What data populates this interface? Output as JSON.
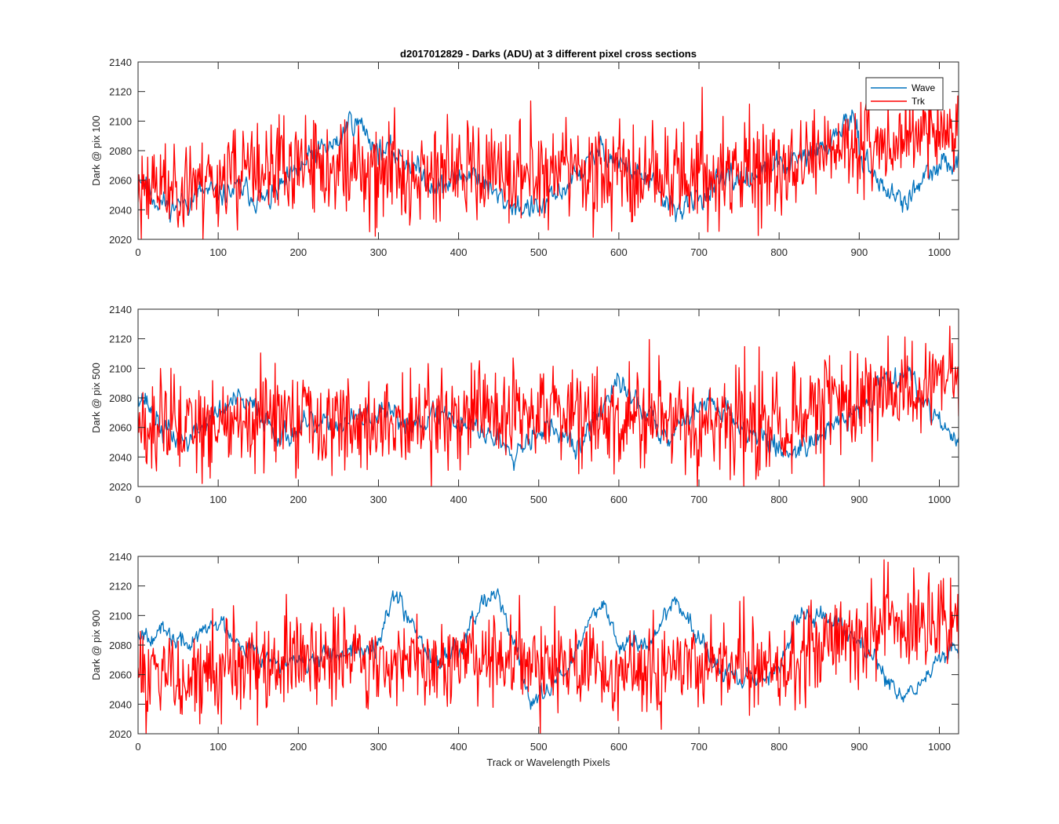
{
  "figure": {
    "title": "d2017012829 - Darks (ADU) at 3 different pixel cross sections",
    "xlabel": "Track or Wavelength Pixels"
  },
  "legend": {
    "placement": "top-right",
    "entries": [
      {
        "name": "Wave",
        "color": "#0072BD"
      },
      {
        "name": "Trk",
        "color": "#FF0000"
      }
    ]
  },
  "chart_data": [
    {
      "type": "line",
      "ylabel": "Dark @ pix 100",
      "xlim": [
        0,
        1024
      ],
      "ylim": [
        2020,
        2140
      ],
      "xticks": [
        0,
        100,
        200,
        300,
        400,
        500,
        600,
        700,
        800,
        900,
        1000
      ],
      "yticks": [
        2020,
        2040,
        2060,
        2080,
        2100,
        2120,
        2140
      ],
      "grid": false,
      "legend": true,
      "series": [
        {
          "name": "Wave",
          "color": "#0072BD",
          "noise": 5,
          "seed": 11,
          "x": [
            0,
            20,
            40,
            60,
            80,
            100,
            130,
            160,
            190,
            220,
            250,
            265,
            280,
            300,
            320,
            340,
            360,
            380,
            400,
            420,
            440,
            460,
            480,
            500,
            520,
            540,
            560,
            580,
            600,
            620,
            640,
            660,
            680,
            700,
            720,
            740,
            760,
            780,
            800,
            820,
            840,
            860,
            880,
            890,
            900,
            920,
            940,
            960,
            980,
            1000,
            1024
          ],
          "y": [
            2066,
            2048,
            2042,
            2046,
            2052,
            2050,
            2054,
            2045,
            2060,
            2078,
            2085,
            2102,
            2096,
            2080,
            2078,
            2072,
            2060,
            2055,
            2062,
            2066,
            2052,
            2045,
            2042,
            2040,
            2048,
            2060,
            2070,
            2082,
            2072,
            2066,
            2058,
            2044,
            2040,
            2048,
            2056,
            2060,
            2062,
            2066,
            2070,
            2072,
            2078,
            2082,
            2098,
            2103,
            2082,
            2062,
            2050,
            2046,
            2060,
            2068,
            2075
          ]
        },
        {
          "name": "Trk",
          "color": "#FF0000",
          "noise": 15,
          "seed": 23,
          "x": [
            0,
            100,
            200,
            300,
            400,
            500,
            600,
            700,
            800,
            850,
            900,
            950,
            1000,
            1024
          ],
          "y": [
            2055,
            2062,
            2068,
            2068,
            2065,
            2066,
            2066,
            2063,
            2068,
            2075,
            2085,
            2090,
            2095,
            2098
          ]
        }
      ]
    },
    {
      "type": "line",
      "ylabel": "Dark @ pix 500",
      "xlim": [
        0,
        1024
      ],
      "ylim": [
        2020,
        2140
      ],
      "xticks": [
        0,
        100,
        200,
        300,
        400,
        500,
        600,
        700,
        800,
        900,
        1000
      ],
      "yticks": [
        2020,
        2040,
        2060,
        2080,
        2100,
        2120,
        2140
      ],
      "grid": false,
      "legend": false,
      "series": [
        {
          "name": "Wave",
          "color": "#0072BD",
          "noise": 5,
          "seed": 37,
          "x": [
            0,
            10,
            30,
            60,
            90,
            120,
            150,
            180,
            210,
            250,
            300,
            340,
            380,
            420,
            450,
            470,
            500,
            520,
            550,
            580,
            600,
            630,
            660,
            690,
            720,
            760,
            790,
            810,
            840,
            870,
            900,
            930,
            960,
            980,
            1000,
            1024
          ],
          "y": [
            2085,
            2078,
            2058,
            2050,
            2066,
            2078,
            2072,
            2054,
            2060,
            2062,
            2068,
            2064,
            2070,
            2060,
            2052,
            2045,
            2060,
            2058,
            2045,
            2075,
            2090,
            2072,
            2055,
            2070,
            2078,
            2058,
            2050,
            2042,
            2052,
            2060,
            2072,
            2092,
            2100,
            2078,
            2068,
            2045
          ]
        },
        {
          "name": "Trk",
          "color": "#FF0000",
          "noise": 15,
          "seed": 51,
          "x": [
            0,
            100,
            200,
            300,
            400,
            500,
            600,
            700,
            800,
            850,
            900,
            950,
            1000,
            1024
          ],
          "y": [
            2058,
            2062,
            2064,
            2062,
            2068,
            2070,
            2066,
            2064,
            2062,
            2070,
            2080,
            2085,
            2090,
            2088
          ]
        }
      ]
    },
    {
      "type": "line",
      "ylabel": "Dark @ pix 900",
      "xlim": [
        0,
        1024
      ],
      "ylim": [
        2020,
        2140
      ],
      "xticks": [
        0,
        100,
        200,
        300,
        400,
        500,
        600,
        700,
        800,
        900,
        1000
      ],
      "yticks": [
        2020,
        2040,
        2060,
        2080,
        2100,
        2120,
        2140
      ],
      "grid": false,
      "legend": false,
      "series": [
        {
          "name": "Wave",
          "color": "#0072BD",
          "noise": 4,
          "seed": 67,
          "x": [
            0,
            30,
            60,
            100,
            140,
            180,
            220,
            260,
            300,
            320,
            340,
            370,
            400,
            430,
            445,
            470,
            490,
            510,
            540,
            570,
            580,
            600,
            640,
            670,
            700,
            730,
            760,
            800,
            820,
            850,
            880,
            920,
            950,
            980,
            1000,
            1024
          ],
          "y": [
            2090,
            2088,
            2080,
            2096,
            2078,
            2066,
            2070,
            2072,
            2085,
            2115,
            2098,
            2068,
            2078,
            2112,
            2118,
            2080,
            2040,
            2048,
            2068,
            2102,
            2112,
            2080,
            2082,
            2112,
            2084,
            2060,
            2056,
            2062,
            2098,
            2100,
            2094,
            2068,
            2045,
            2055,
            2070,
            2080
          ]
        },
        {
          "name": "Trk",
          "color": "#FF0000",
          "noise": 15,
          "seed": 83,
          "x": [
            0,
            100,
            200,
            300,
            400,
            500,
            600,
            700,
            800,
            850,
            900,
            950,
            1000,
            1024
          ],
          "y": [
            2058,
            2064,
            2068,
            2070,
            2072,
            2068,
            2066,
            2064,
            2068,
            2078,
            2088,
            2092,
            2096,
            2095
          ]
        }
      ]
    }
  ]
}
